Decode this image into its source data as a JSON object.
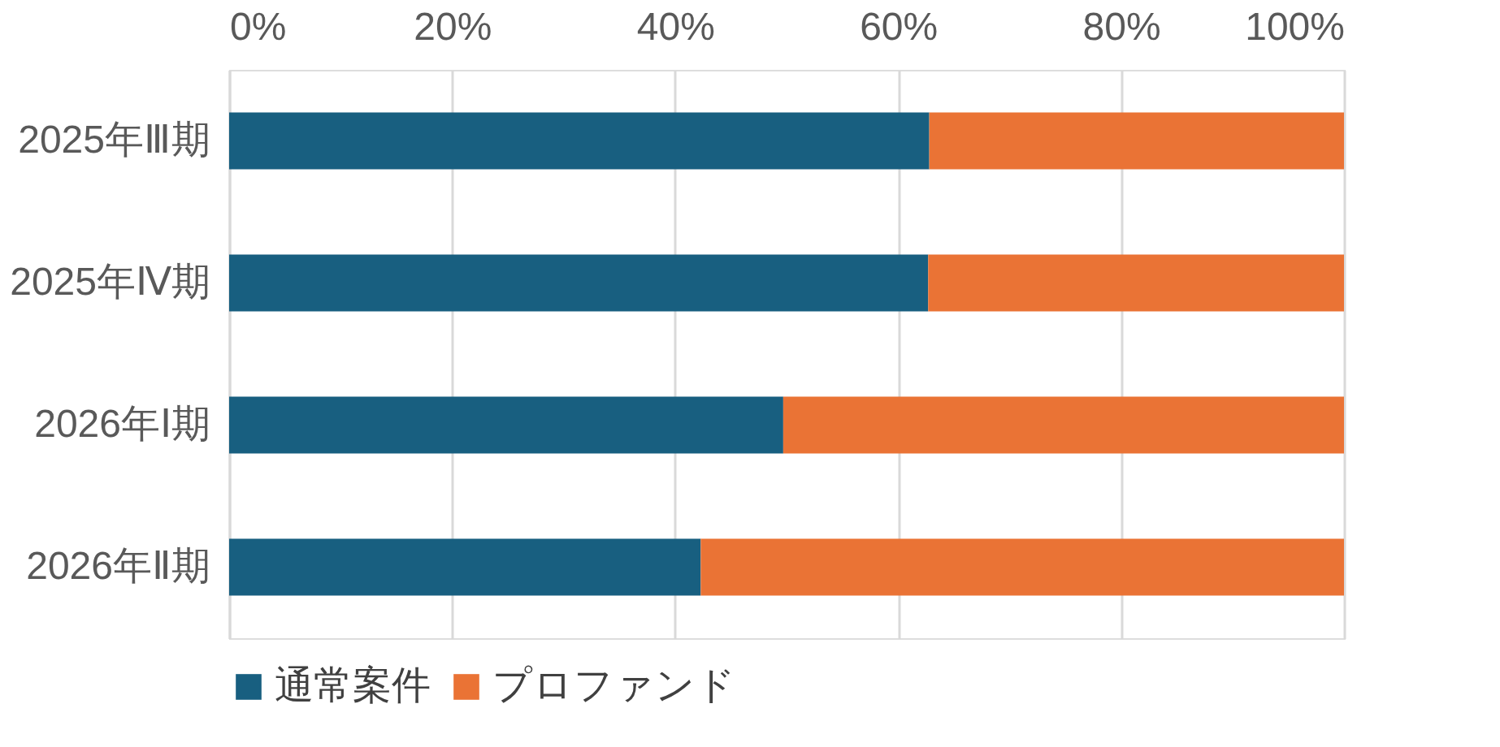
{
  "chart_data": {
    "type": "bar",
    "orientation": "horizontal",
    "stacked": true,
    "categories": [
      "2025年Ⅲ期",
      "2025年Ⅳ期",
      "2026年Ⅰ期",
      "2026年Ⅱ期"
    ],
    "series": [
      {
        "name": "通常案件",
        "color": "#185f80",
        "values": [
          62.8,
          62.7,
          49.7,
          42.3
        ]
      },
      {
        "name": "プロファンド",
        "color": "#ea7335",
        "values": [
          37.2,
          37.3,
          50.3,
          57.7
        ]
      }
    ],
    "xlim": [
      0,
      100
    ],
    "xticks": [
      {
        "value": 0,
        "label": "0%"
      },
      {
        "value": 20,
        "label": "20%"
      },
      {
        "value": 40,
        "label": "40%"
      },
      {
        "value": 60,
        "label": "60%"
      },
      {
        "value": 80,
        "label": "80%"
      },
      {
        "value": 100,
        "label": "100%"
      }
    ],
    "grid": "x",
    "legend": "bottom"
  }
}
